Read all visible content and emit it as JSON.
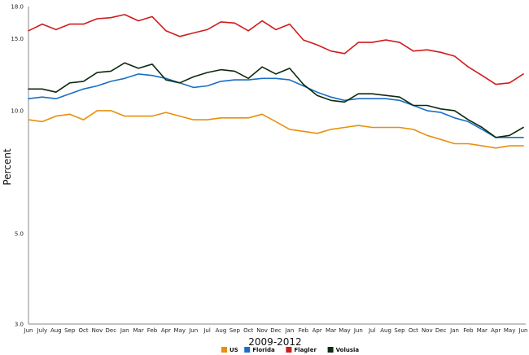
{
  "chart_data": {
    "type": "line",
    "title": "",
    "xlabel": "2009-2012",
    "ylabel": "Percent",
    "ylim": [
      3.0,
      18.0
    ],
    "yticks": [
      "3.0",
      "5.0",
      "10.0",
      "15.0",
      "18.0"
    ],
    "grid": false,
    "legend": "bottom-center",
    "categories": [
      "Jun",
      "July",
      "Aug",
      "Sep",
      "Oct",
      "Nov",
      "Dec",
      "Jan",
      "Mar",
      "Feb",
      "Apr",
      "May",
      "Jun",
      "Jul",
      "Aug",
      "Sep",
      "Oct",
      "Nov",
      "Dec",
      "Jan",
      "Feb",
      "Apr",
      "Mar",
      "May",
      "Jun",
      "Jul",
      "Aug",
      "Sep",
      "Oct",
      "Nov",
      "Dec",
      "Jan",
      "Feb",
      "Mar",
      "Apr",
      "May",
      "Jun"
    ],
    "series": [
      {
        "name": "US",
        "color": "#e8900c",
        "values": [
          9.5,
          9.4,
          9.7,
          9.8,
          9.5,
          10.0,
          10.0,
          9.7,
          9.7,
          9.7,
          9.9,
          9.7,
          9.5,
          9.5,
          9.6,
          9.6,
          9.6,
          9.8,
          9.4,
          9.0,
          8.9,
          8.8,
          9.0,
          9.1,
          9.2,
          9.1,
          9.1,
          9.1,
          9.0,
          8.7,
          8.5,
          8.3,
          8.3,
          8.2,
          8.1,
          8.2,
          8.2
        ]
      },
      {
        "name": "Florida",
        "color": "#1a6fc4",
        "values": [
          10.7,
          10.8,
          10.7,
          11.0,
          11.3,
          11.5,
          11.8,
          12.0,
          12.3,
          12.2,
          12.0,
          11.7,
          11.4,
          11.5,
          11.8,
          11.9,
          11.9,
          12.0,
          12.0,
          11.9,
          11.5,
          11.1,
          10.8,
          10.6,
          10.7,
          10.7,
          10.7,
          10.6,
          10.3,
          10.0,
          9.9,
          9.6,
          9.4,
          9.0,
          8.6,
          8.6,
          8.6
        ]
      },
      {
        "name": "Flagler",
        "color": "#d01c1c",
        "values": [
          15.7,
          16.3,
          15.8,
          16.3,
          16.3,
          16.8,
          16.9,
          17.2,
          16.6,
          17.0,
          15.7,
          15.2,
          15.5,
          15.8,
          16.5,
          16.4,
          15.7,
          16.6,
          15.8,
          16.3,
          14.9,
          14.5,
          14.0,
          13.8,
          14.7,
          14.7,
          14.9,
          14.7,
          14.0,
          14.1,
          13.9,
          13.6,
          12.8,
          12.2,
          11.6,
          11.7,
          12.3
        ]
      },
      {
        "name": "Volusia",
        "color": "#0d2b0d",
        "values": [
          11.3,
          11.3,
          11.1,
          11.7,
          11.8,
          12.4,
          12.5,
          13.1,
          12.7,
          13.0,
          11.9,
          11.7,
          12.1,
          12.4,
          12.6,
          12.5,
          12.0,
          12.8,
          12.3,
          12.7,
          11.6,
          10.9,
          10.6,
          10.5,
          11.0,
          11.0,
          10.9,
          10.8,
          10.3,
          10.3,
          10.1,
          10.0,
          9.5,
          9.1,
          8.6,
          8.7,
          9.1
        ]
      }
    ]
  }
}
